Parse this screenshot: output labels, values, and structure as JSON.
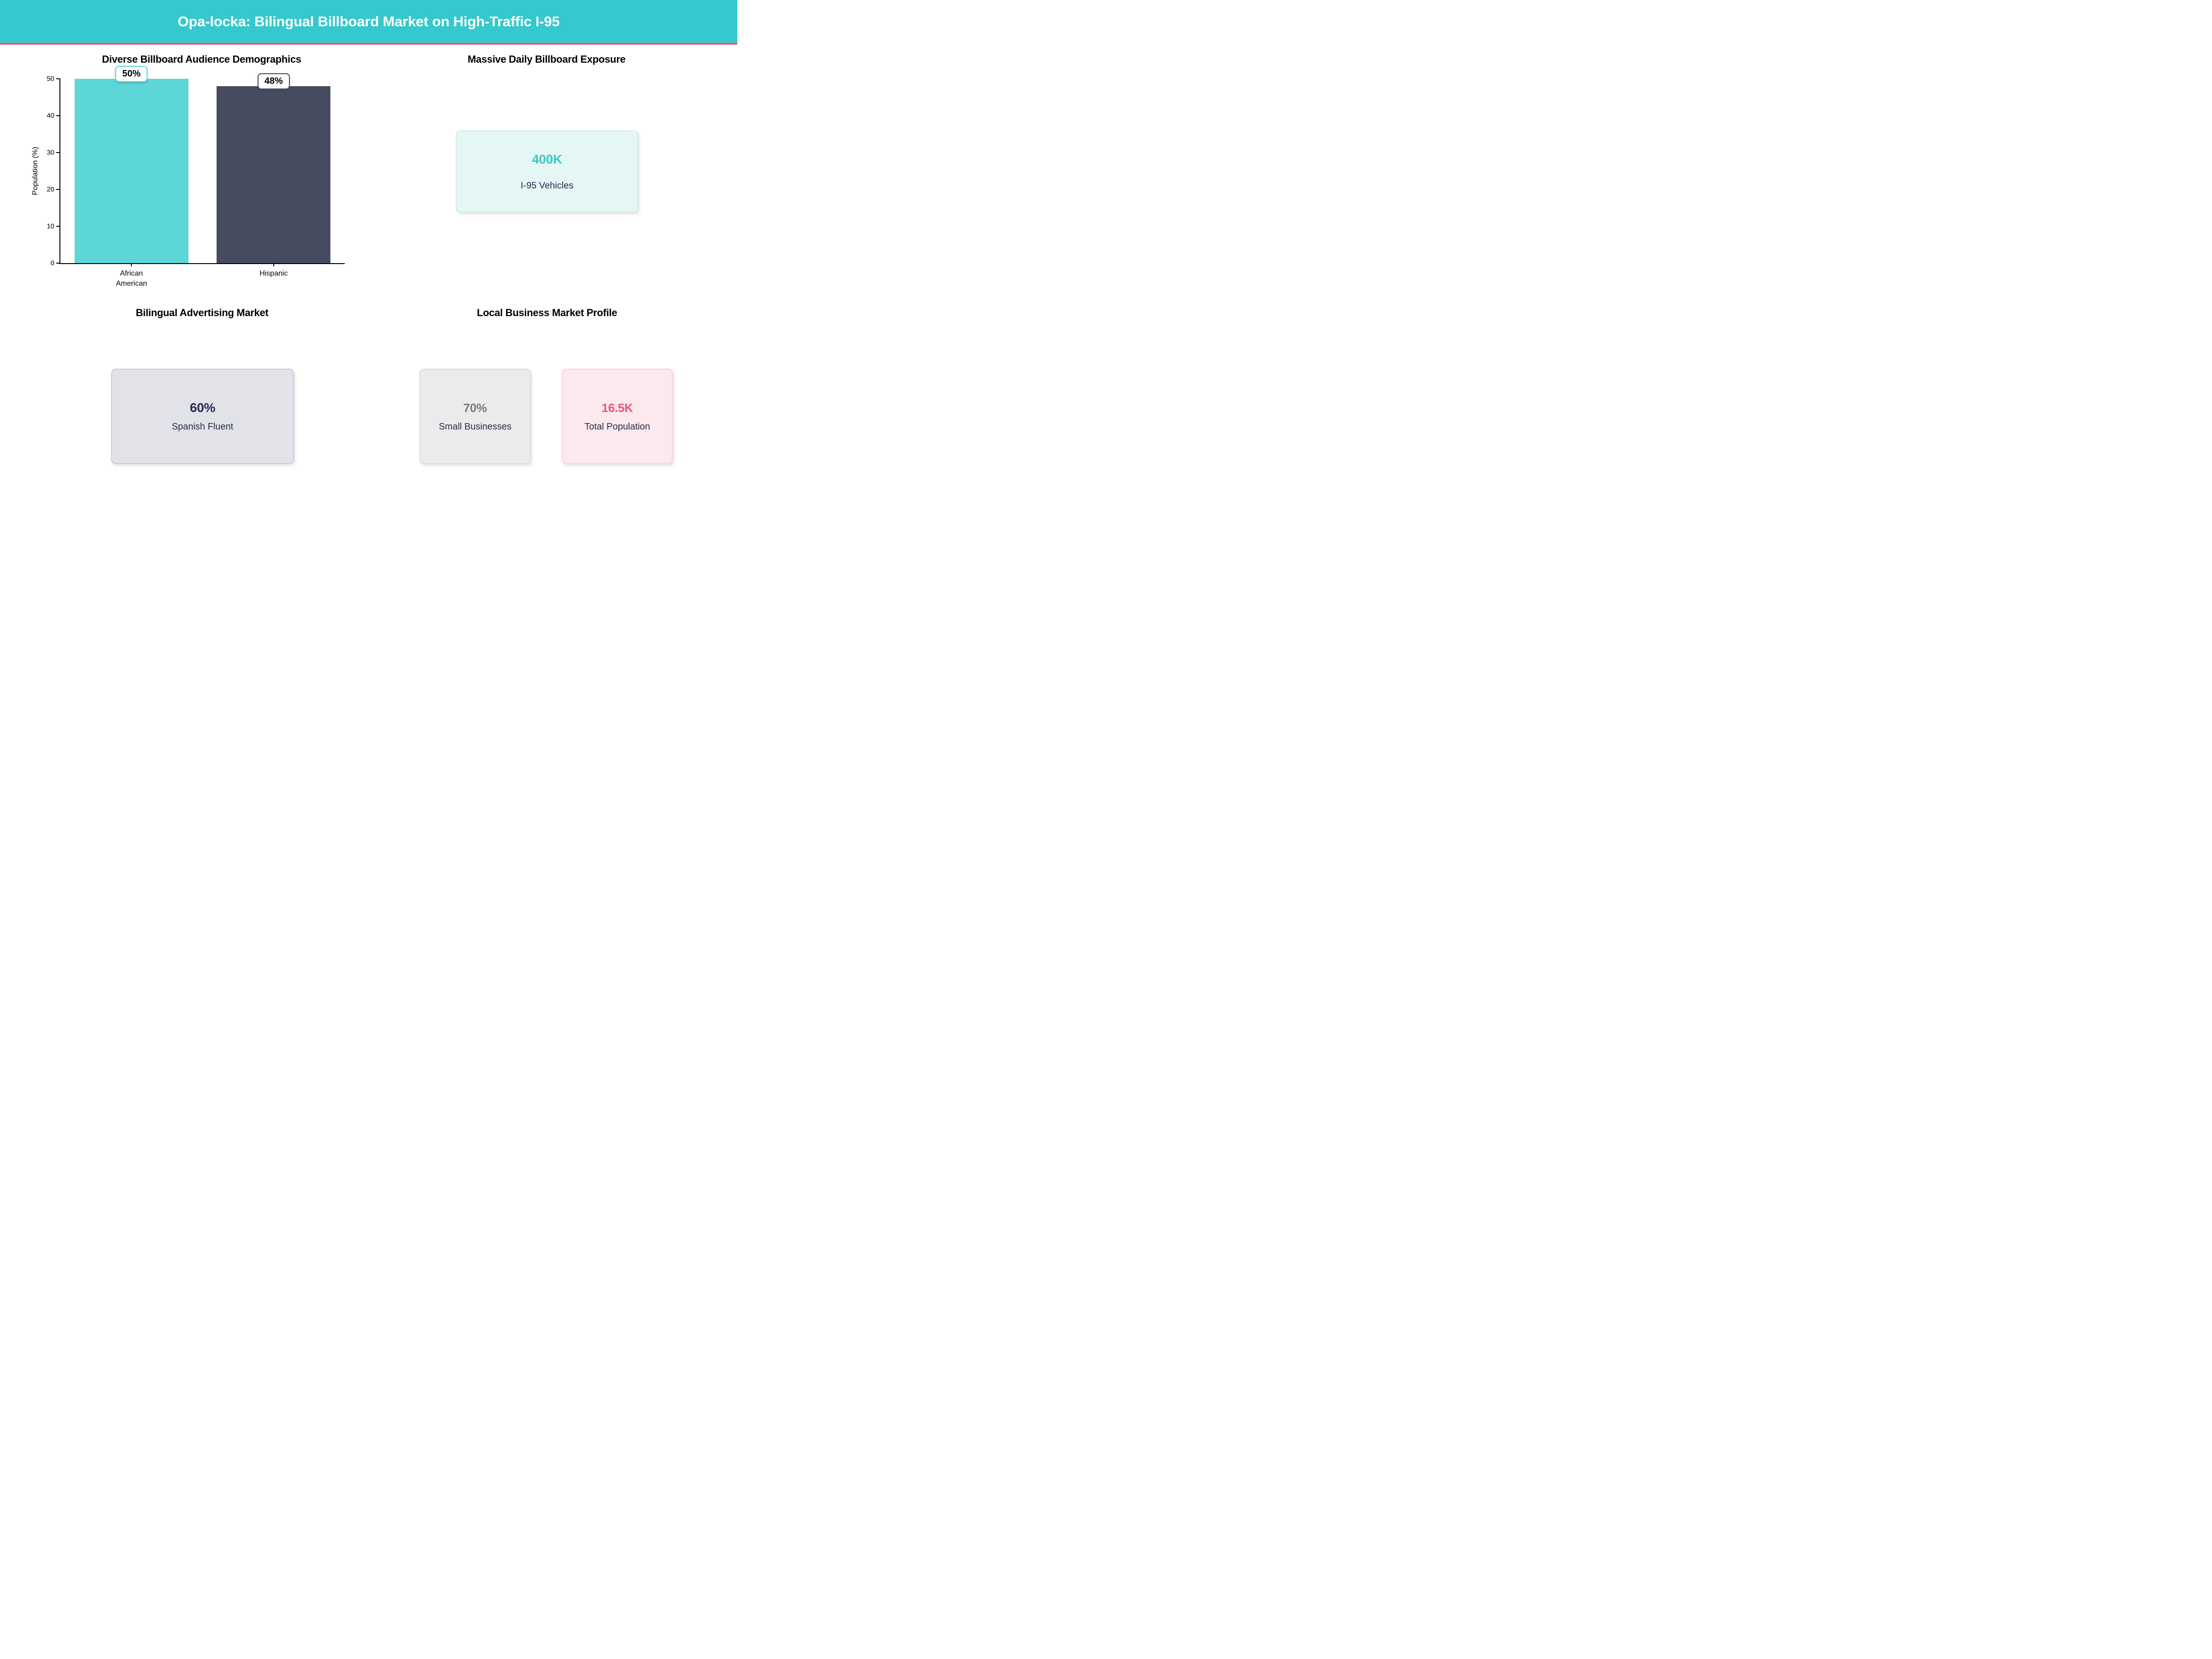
{
  "banner": {
    "title": "Opa-locka: Bilingual Billboard Market on High-Traffic I-95",
    "bg_color": "#35c8cc",
    "stripe_color": "#ee5a74",
    "text_color": "#ffffff"
  },
  "panels": {
    "demographics": {
      "title": "Diverse Billboard Audience Demographics"
    },
    "exposure": {
      "title": "Massive Daily Billboard Exposure",
      "card": {
        "value": "400K",
        "label": "I-95 Vehicles",
        "value_color": "#3bc9c5",
        "label_color": "#222b4c",
        "bg": "#e4f7f5",
        "border": "#cdeeea"
      }
    },
    "bilingual": {
      "title": "Bilingual Advertising Market",
      "card": {
        "value": "60%",
        "label": "Spanish Fluent",
        "value_color": "#252c52",
        "label_color": "#222b4c",
        "bg": "#e1e3e8",
        "border": "#c9cdd6"
      }
    },
    "business": {
      "title": "Local Business Market Profile",
      "cards": [
        {
          "value": "70%",
          "label": "Small Businesses",
          "value_color": "#7a7a7a",
          "label_color": "#222b4c",
          "bg": "#ebebeb",
          "border": "#dddddd"
        },
        {
          "value": "16.5K",
          "label": "Total Population",
          "value_color": "#ea5576",
          "label_color": "#222b4c",
          "bg": "#fce9ed",
          "border": "#f8d2da"
        }
      ]
    }
  },
  "chart_data": {
    "type": "bar",
    "title": "Diverse Billboard Audience Demographics",
    "categories": [
      "African American",
      "Hispanic"
    ],
    "xtick_labels": [
      "African\nAmerican",
      "Hispanic"
    ],
    "values": [
      50,
      48
    ],
    "value_labels": [
      "50%",
      "48%"
    ],
    "bar_colors": [
      "#5cd6d6",
      "#464b60"
    ],
    "xlabel": "",
    "ylabel": "Population (%)",
    "yticks": [
      0,
      10,
      20,
      30,
      40,
      50
    ],
    "ylim": [
      0,
      50
    ],
    "grid": false,
    "legend": false
  }
}
